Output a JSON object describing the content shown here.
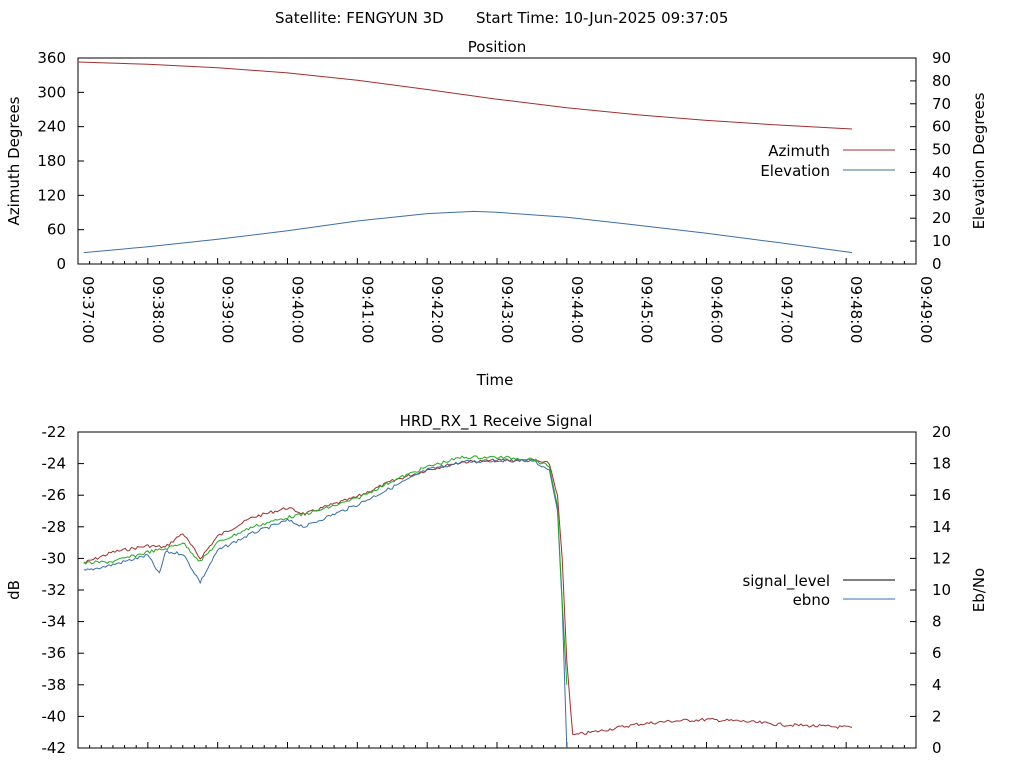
{
  "header": {
    "satellite": "Satellite: FENGYUN 3D",
    "start_time": "Start Time: 10-Jun-2025 09:37:05"
  },
  "chart_data": [
    {
      "type": "line",
      "title": "Position",
      "xlabel": "Time",
      "ylabel": "Azimuth Degrees",
      "y2label": "Elevation Degrees",
      "x_ticks": [
        "09:37:00",
        "09:38:00",
        "09:39:00",
        "09:40:00",
        "09:41:00",
        "09:42:00",
        "09:43:00",
        "09:44:00",
        "09:45:00",
        "09:46:00",
        "09:47:00",
        "09:48:00",
        "09:49:00"
      ],
      "xlim": [
        "09:37:00",
        "09:49:00"
      ],
      "ylim": [
        0,
        360
      ],
      "y_ticks": [
        0,
        60,
        120,
        180,
        240,
        300,
        360
      ],
      "y2lim": [
        0,
        90
      ],
      "y2_ticks": [
        0,
        10,
        20,
        30,
        40,
        50,
        60,
        70,
        80,
        90
      ],
      "grid": false,
      "legend": "right",
      "series": [
        {
          "name": "Azimuth",
          "axis": "y",
          "color": "#a03030",
          "x": [
            "09:37:00",
            "09:38:00",
            "09:39:00",
            "09:40:00",
            "09:41:00",
            "09:42:00",
            "09:43:00",
            "09:44:00",
            "09:45:00",
            "09:46:00",
            "09:47:00",
            "09:48:05"
          ],
          "y": [
            353,
            349,
            343,
            334,
            321,
            305,
            288,
            273,
            261,
            251,
            243,
            236
          ]
        },
        {
          "name": "Elevation",
          "axis": "y2",
          "color": "#3a6fa8",
          "x": [
            "09:37:05",
            "09:38:00",
            "09:39:00",
            "09:40:00",
            "09:41:00",
            "09:42:00",
            "09:42:40",
            "09:43:00",
            "09:44:00",
            "09:45:00",
            "09:46:00",
            "09:47:00",
            "09:48:05"
          ],
          "y": [
            5,
            7.5,
            10.8,
            14.5,
            18.8,
            22.0,
            23.0,
            22.6,
            20.4,
            17.0,
            13.4,
            9.5,
            5
          ]
        }
      ]
    },
    {
      "type": "line",
      "title": "HRD_RX_1 Receive Signal",
      "ylabel": "dB",
      "y2label": "Eb/No",
      "ylim": [
        -42,
        -22
      ],
      "y_ticks": [
        -22,
        -24,
        -26,
        -28,
        -30,
        -32,
        -34,
        -36,
        -38,
        -40,
        -42
      ],
      "y2lim": [
        0,
        20
      ],
      "y2_ticks": [
        20,
        18,
        16,
        14,
        12,
        10,
        8,
        6,
        4,
        2,
        0
      ],
      "xlim": [
        "09:37:00",
        "09:49:00"
      ],
      "grid": false,
      "legend": "right",
      "series": [
        {
          "name": "signal_level",
          "axis": "y",
          "color": "#a03030",
          "x": [
            "09:37:05",
            "09:37:30",
            "09:38:00",
            "09:38:15",
            "09:38:30",
            "09:38:45",
            "09:39:00",
            "09:39:30",
            "09:40:00",
            "09:40:15",
            "09:40:30",
            "09:41:00",
            "09:41:30",
            "09:42:00",
            "09:42:30",
            "09:43:00",
            "09:43:30",
            "09:43:45",
            "09:43:52",
            "09:43:56",
            "09:44:00",
            "09:44:05",
            "09:44:30",
            "09:45:00",
            "09:45:30",
            "09:46:00",
            "09:46:30",
            "09:47:00",
            "09:47:30",
            "09:48:05"
          ],
          "y": [
            -30.3,
            -29.6,
            -29.2,
            -29.3,
            -28.4,
            -30.0,
            -28.6,
            -27.4,
            -26.8,
            -27.2,
            -26.8,
            -26.1,
            -25.1,
            -24.4,
            -23.9,
            -23.8,
            -23.8,
            -24.0,
            -26.0,
            -30.0,
            -36.5,
            -41.2,
            -40.9,
            -40.5,
            -40.3,
            -40.2,
            -40.3,
            -40.5,
            -40.6,
            -40.7
          ]
        },
        {
          "name": "ebno",
          "axis": "y2",
          "color": "#3a6fa8",
          "x": [
            "09:37:05",
            "09:37:30",
            "09:38:00",
            "09:38:10",
            "09:38:15",
            "09:38:30",
            "09:38:45",
            "09:39:00",
            "09:39:30",
            "09:40:00",
            "09:40:15",
            "09:40:30",
            "09:41:00",
            "09:41:30",
            "09:42:00",
            "09:42:30",
            "09:43:00",
            "09:43:30",
            "09:43:45",
            "09:43:52",
            "09:43:56",
            "09:44:00"
          ],
          "y": [
            11.2,
            11.6,
            12.2,
            11.0,
            12.4,
            12.3,
            10.5,
            12.5,
            13.6,
            14.4,
            14.0,
            14.5,
            15.4,
            16.5,
            17.6,
            18.1,
            18.2,
            18.2,
            17.6,
            15.0,
            9.0,
            0
          ]
        },
        {
          "name": "",
          "axis": "y2",
          "color": "#22aa22",
          "x": [
            "09:37:05",
            "09:37:30",
            "09:38:00",
            "09:38:15",
            "09:38:30",
            "09:38:45",
            "09:39:00",
            "09:39:30",
            "09:40:00",
            "09:40:15",
            "09:40:30",
            "09:41:00",
            "09:41:30",
            "09:42:00",
            "09:42:30",
            "09:43:00",
            "09:43:30",
            "09:43:45",
            "09:43:52",
            "09:43:56",
            "09:44:00"
          ],
          "y": [
            11.7,
            11.8,
            12.4,
            12.6,
            13.0,
            11.8,
            13.0,
            14.0,
            14.6,
            14.8,
            15.1,
            15.8,
            16.9,
            17.8,
            18.4,
            18.4,
            18.3,
            17.8,
            15.3,
            9.3,
            4.0
          ]
        }
      ]
    }
  ]
}
